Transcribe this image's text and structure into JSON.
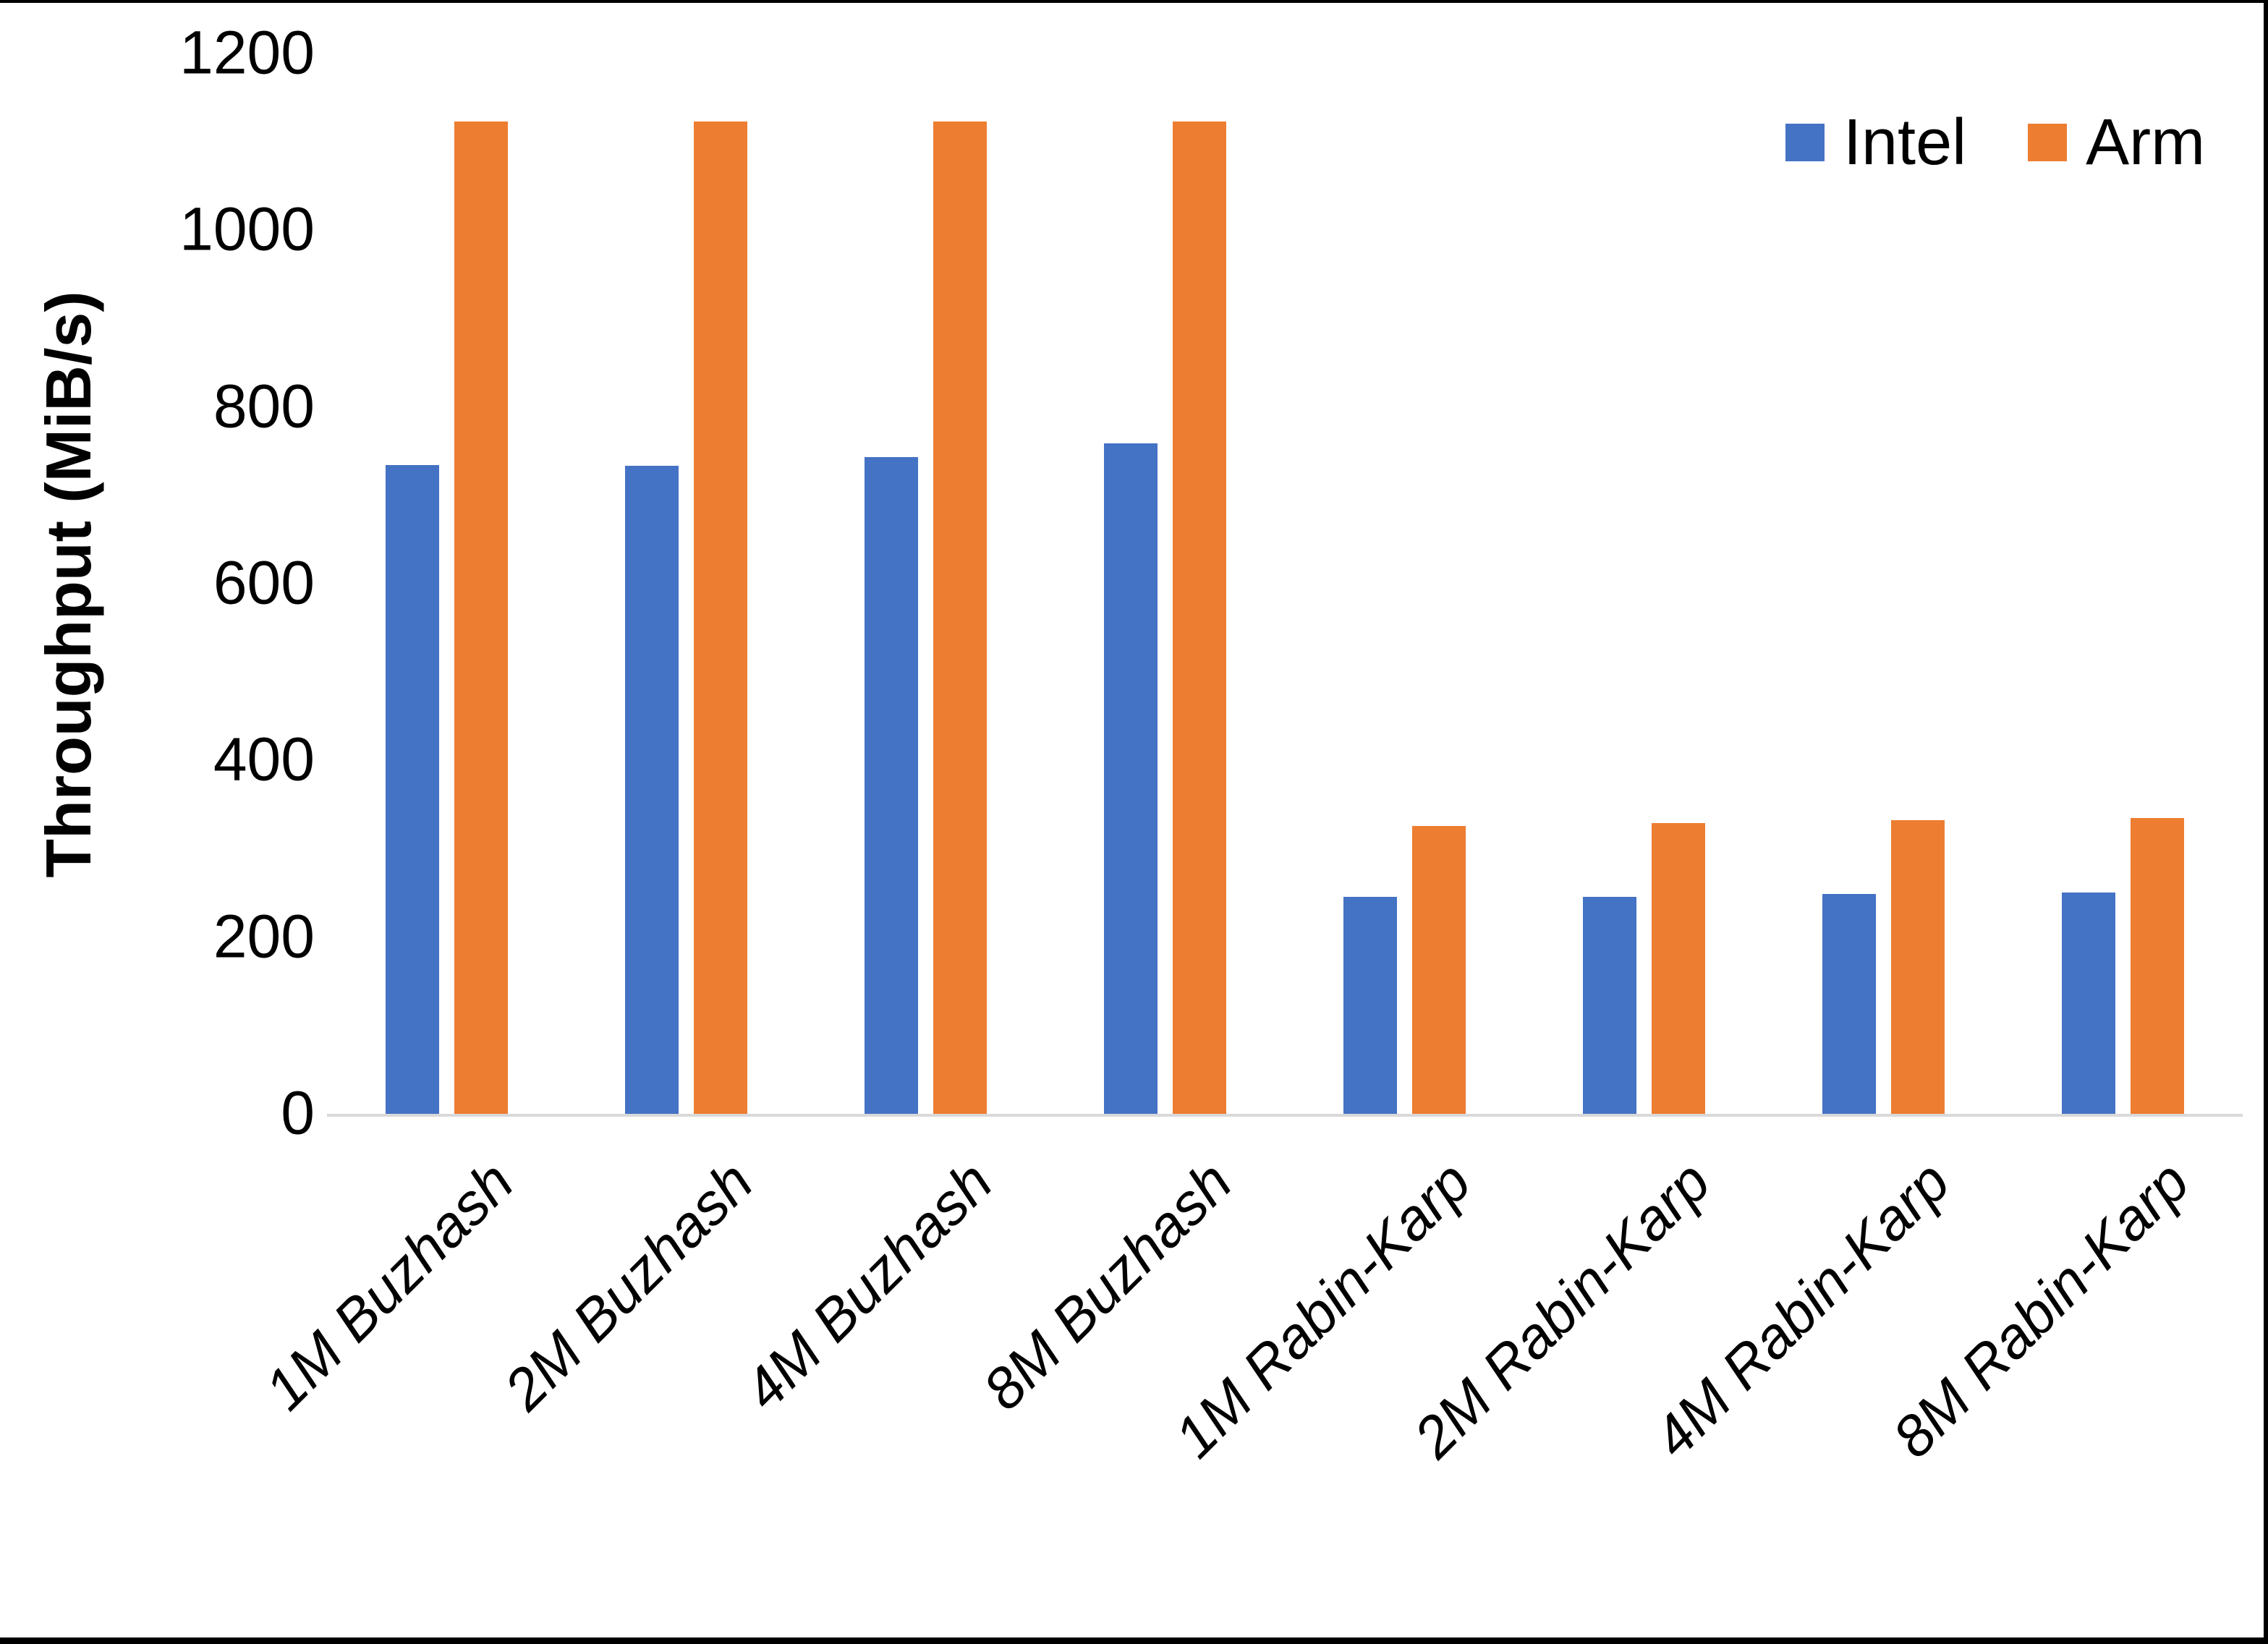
{
  "page": {
    "border_color": "#000000",
    "background": "#ffffff"
  },
  "chart_data": {
    "type": "bar",
    "title": "",
    "xlabel": "",
    "ylabel": "Throughput (MiB/s)",
    "ylim": [
      0,
      1200
    ],
    "yticks": [
      0,
      200,
      400,
      600,
      800,
      1000,
      1200
    ],
    "grid": false,
    "legend_position": "top-right",
    "axis_line_color": "#D9D9D9",
    "categories": [
      "1M Buzhash",
      "2M Buzhash",
      "4M Buzhash",
      "8M Buzhash",
      "1M Rabin-Karp",
      "2M Rabin-Karp",
      "4M Rabin-Karp",
      "8M Rabin-Karp"
    ],
    "series": [
      {
        "name": "Intel",
        "color": "#4472C4",
        "values": [
          735,
          734,
          744,
          760,
          246,
          246,
          250,
          251
        ]
      },
      {
        "name": "Arm",
        "color": "#ED7D31",
        "values": [
          1124,
          1124,
          1124,
          1124,
          327,
          330,
          333,
          336
        ]
      }
    ]
  }
}
